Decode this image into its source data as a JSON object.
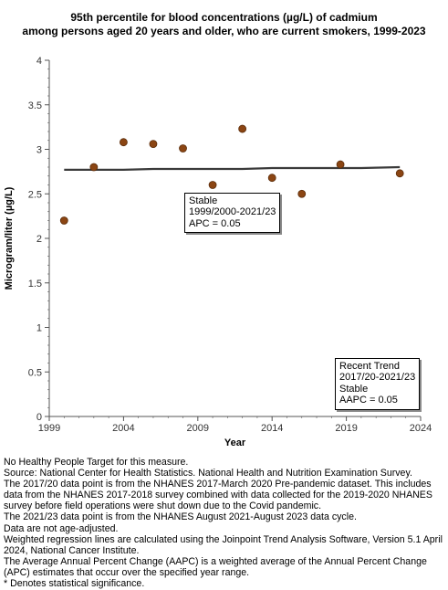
{
  "title_line1": "95th percentile for blood concentrations (µg/L) of cadmium",
  "title_line2": "among persons aged 20 years and older, who are current smokers, 1999-2023",
  "chart_data": {
    "type": "scatter",
    "title": "95th percentile for blood concentrations (µg/L) of cadmium among persons aged 20 years and older, who are current smokers, 1999-2023",
    "xlabel": "Year",
    "ylabel": "Microgram/liter (µg/L)",
    "xlim": [
      1999,
      2024
    ],
    "ylim": [
      0,
      4
    ],
    "x_ticks": [
      "1999",
      "2004",
      "2009",
      "2014",
      "2019",
      "2024"
    ],
    "y_ticks": [
      "0",
      "0.5",
      "1",
      "1.5",
      "2",
      "2.5",
      "3",
      "3.5",
      "4"
    ],
    "points": [
      {
        "x": 2000.0,
        "y": 2.2
      },
      {
        "x": 2002.0,
        "y": 2.8
      },
      {
        "x": 2004.0,
        "y": 3.08
      },
      {
        "x": 2006.0,
        "y": 3.06
      },
      {
        "x": 2008.0,
        "y": 3.01
      },
      {
        "x": 2010.0,
        "y": 2.6
      },
      {
        "x": 2012.0,
        "y": 3.23
      },
      {
        "x": 2014.0,
        "y": 2.68
      },
      {
        "x": 2016.0,
        "y": 2.5
      },
      {
        "x": 2018.6,
        "y": 2.83
      },
      {
        "x": 2022.6,
        "y": 2.73
      }
    ],
    "trend_line": [
      {
        "x": 2000.0,
        "y": 2.77
      },
      {
        "x": 2004.0,
        "y": 2.77
      },
      {
        "x": 2006.0,
        "y": 2.78
      },
      {
        "x": 2012.0,
        "y": 2.78
      },
      {
        "x": 2014.0,
        "y": 2.79
      },
      {
        "x": 2020.0,
        "y": 2.79
      },
      {
        "x": 2022.6,
        "y": 2.8
      }
    ],
    "grid": false,
    "colors": {
      "point_fill": "#8b4513",
      "point_stroke": "#5a2c0a",
      "trend": "#3a3a3a",
      "axis": "#555555"
    }
  },
  "annotations": {
    "segment": {
      "line1": "Stable",
      "line2": "1999/2000-2021/23",
      "line3": "APC =  0.05"
    },
    "recent": {
      "line1": "Recent Trend",
      "line2": "2017/20-2021/23",
      "line3": "Stable",
      "line4": "AAPC =  0.05"
    }
  },
  "notes": [
    "No Healthy People Target for this measure.",
    "Source: National Center for Health Statistics. National Health and Nutrition Examination Survey.",
    "The 2017/20 data point is from the NHANES 2017-March 2020 Pre-pandemic dataset. This includes data from the NHANES 2017-2018 survey combined with data collected for the 2019-2020 NHANES survey before field operations were shut down due to the Covid pandemic.",
    "The 2021/23 data point is from the NHANES August 2021-August 2023 data cycle.",
    "Data are not age-adjusted.",
    "Weighted regression lines are calculated using the Joinpoint Trend Analysis Software, Version 5.1 April 2024, National Cancer Institute.",
    "The Average Annual Percent Change (AAPC) is a weighted average of the Annual Percent Change (APC) estimates that occur over the specified year range.",
    "* Denotes statistical significance."
  ]
}
